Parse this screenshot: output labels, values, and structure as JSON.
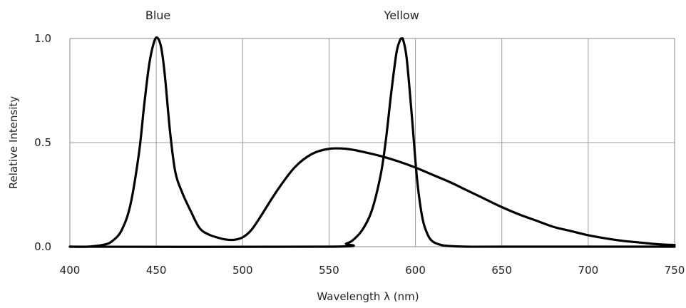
{
  "chart_data": {
    "type": "line",
    "title": "",
    "xlabel": "Wavelength λ (nm)",
    "ylabel": "Relative Intensity",
    "xlim": [
      400,
      750
    ],
    "ylim": [
      0,
      1.0
    ],
    "grid": true,
    "x_ticks": [
      "400",
      "450",
      "500",
      "550",
      "600",
      "650",
      "700",
      "750"
    ],
    "y_ticks": [
      "0.0",
      "0.5",
      "1.0"
    ],
    "annotations": [
      {
        "text": "Blue",
        "x": 451
      },
      {
        "text": "Yellow",
        "x": 592
      }
    ],
    "series": [
      {
        "x": [
          400,
          410,
          420,
          425,
          430,
          435,
          440,
          443,
          446,
          449,
          451,
          453,
          455,
          458,
          461,
          465,
          470,
          475,
          480,
          485,
          490,
          495,
          500,
          505,
          510,
          520,
          530,
          540,
          550,
          560,
          570,
          580,
          590,
          600,
          610,
          620,
          630,
          640,
          650,
          660,
          670,
          680,
          690,
          700,
          710,
          720,
          730,
          740,
          750
        ],
        "values": [
          0.0,
          0.0,
          0.01,
          0.03,
          0.08,
          0.2,
          0.45,
          0.68,
          0.88,
          0.99,
          1.0,
          0.95,
          0.82,
          0.55,
          0.36,
          0.26,
          0.17,
          0.09,
          0.06,
          0.045,
          0.035,
          0.033,
          0.045,
          0.08,
          0.14,
          0.27,
          0.38,
          0.445,
          0.47,
          0.47,
          0.455,
          0.435,
          0.41,
          0.38,
          0.345,
          0.31,
          0.27,
          0.23,
          0.19,
          0.155,
          0.125,
          0.095,
          0.075,
          0.055,
          0.04,
          0.028,
          0.02,
          0.012,
          0.008
        ]
      },
      {
        "x": [
          400,
          550,
          560,
          565,
          570,
          575,
          580,
          583,
          586,
          589,
          591,
          592,
          593,
          595,
          598,
          601,
          604,
          607,
          610,
          615,
          620,
          630,
          650,
          750
        ],
        "values": [
          0.0,
          0.0,
          0.015,
          0.04,
          0.09,
          0.18,
          0.35,
          0.52,
          0.74,
          0.93,
          0.99,
          1.0,
          0.99,
          0.9,
          0.62,
          0.32,
          0.14,
          0.06,
          0.025,
          0.008,
          0.003,
          0.0,
          0.0,
          0.0
        ]
      }
    ]
  }
}
